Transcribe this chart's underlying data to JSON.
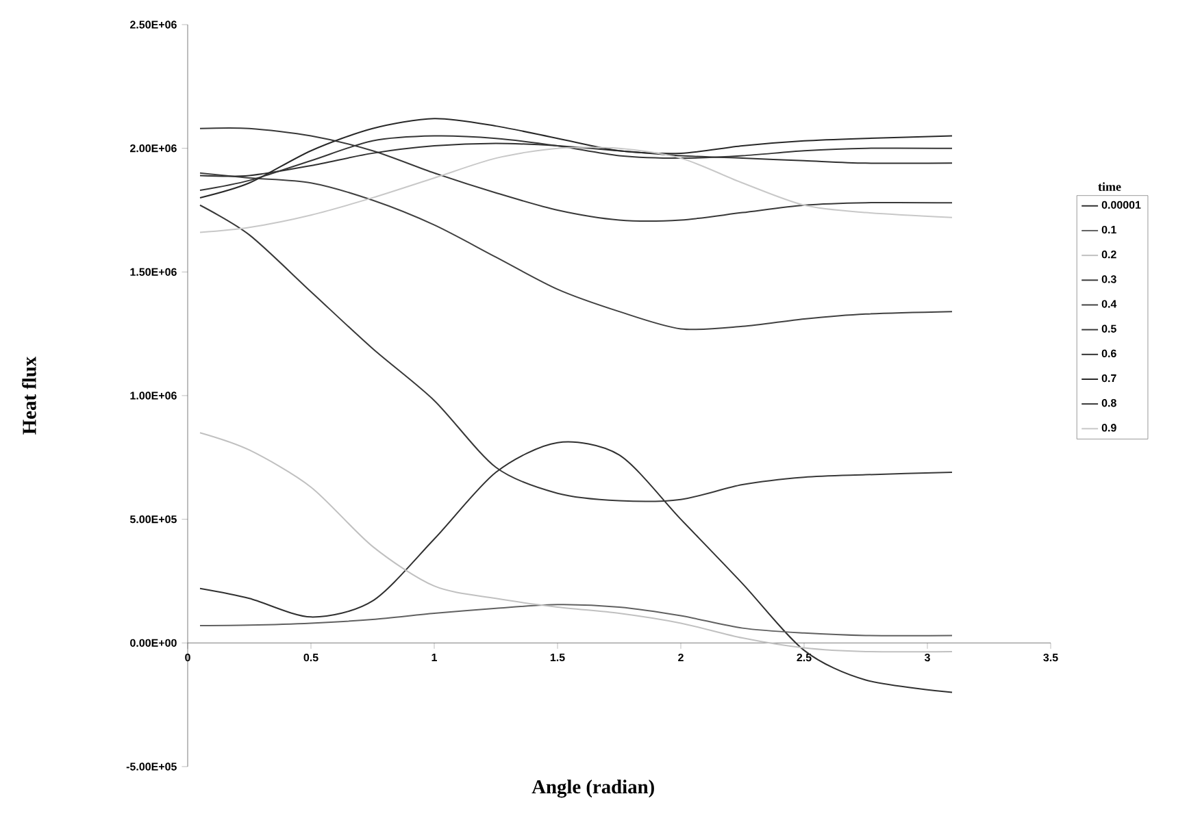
{
  "chart_data": {
    "type": "line",
    "xlabel": "Angle (radian)",
    "ylabel": "Heat flux",
    "legend_title": "time",
    "legend": "right",
    "grid": false,
    "marker": "none",
    "line_style": "solid",
    "xlim": [
      0,
      3.5
    ],
    "xticks": [
      0,
      0.5,
      1,
      1.5,
      2,
      2.5,
      3,
      3.5
    ],
    "ylim": [
      -500000,
      2500000
    ],
    "yticks": [
      {
        "value": -500000,
        "label": "-5.00E+05"
      },
      {
        "value": 0,
        "label": "0.00E+00"
      },
      {
        "value": 500000,
        "label": "5.00E+05"
      },
      {
        "value": 1000000,
        "label": "1.00E+06"
      },
      {
        "value": 1500000,
        "label": "1.50E+06"
      },
      {
        "value": 2000000,
        "label": "2.00E+06"
      },
      {
        "value": 2500000,
        "label": "2.50E+06"
      }
    ],
    "x": [
      0.05,
      0.25,
      0.5,
      0.75,
      1.0,
      1.25,
      1.5,
      1.75,
      2.0,
      2.25,
      2.5,
      2.75,
      3.1
    ],
    "series": [
      {
        "name": "0.00001",
        "color": "#303030",
        "values": [
          220000,
          180000,
          105000,
          170000,
          420000,
          690000,
          810000,
          760000,
          500000,
          240000,
          -30000,
          -150000,
          -200000
        ]
      },
      {
        "name": "0.1",
        "color": "#606060",
        "values": [
          70000,
          72000,
          80000,
          95000,
          120000,
          140000,
          155000,
          145000,
          110000,
          60000,
          40000,
          30000,
          30000
        ]
      },
      {
        "name": "0.2",
        "color": "#c0c0c0",
        "values": [
          850000,
          780000,
          630000,
          390000,
          230000,
          180000,
          145000,
          120000,
          80000,
          20000,
          -20000,
          -35000,
          -35000
        ]
      },
      {
        "name": "0.3",
        "color": "#383838",
        "values": [
          1770000,
          1650000,
          1420000,
          1190000,
          980000,
          710000,
          605000,
          575000,
          580000,
          640000,
          670000,
          680000,
          690000
        ]
      },
      {
        "name": "0.4",
        "color": "#404040",
        "values": [
          1900000,
          1880000,
          1860000,
          1790000,
          1690000,
          1560000,
          1430000,
          1340000,
          1270000,
          1280000,
          1310000,
          1330000,
          1340000
        ]
      },
      {
        "name": "0.5",
        "color": "#383838",
        "values": [
          2080000,
          2080000,
          2050000,
          1990000,
          1900000,
          1820000,
          1750000,
          1710000,
          1710000,
          1740000,
          1770000,
          1780000,
          1780000
        ]
      },
      {
        "name": "0.6",
        "color": "#303030",
        "values": [
          1890000,
          1890000,
          1930000,
          1980000,
          2010000,
          2020000,
          2010000,
          1990000,
          1970000,
          1960000,
          1950000,
          1940000,
          1940000
        ]
      },
      {
        "name": "0.7",
        "color": "#282828",
        "values": [
          1800000,
          1860000,
          1990000,
          2080000,
          2120000,
          2090000,
          2040000,
          1990000,
          1980000,
          2010000,
          2030000,
          2040000,
          2050000
        ]
      },
      {
        "name": "0.8",
        "color": "#353535",
        "values": [
          1830000,
          1870000,
          1950000,
          2030000,
          2050000,
          2040000,
          2010000,
          1970000,
          1960000,
          1970000,
          1990000,
          2000000,
          2000000
        ]
      },
      {
        "name": "0.9",
        "color": "#c8c8c8",
        "values": [
          1660000,
          1680000,
          1730000,
          1800000,
          1880000,
          1960000,
          2000000,
          2000000,
          1960000,
          1860000,
          1770000,
          1740000,
          1720000
        ]
      }
    ]
  }
}
